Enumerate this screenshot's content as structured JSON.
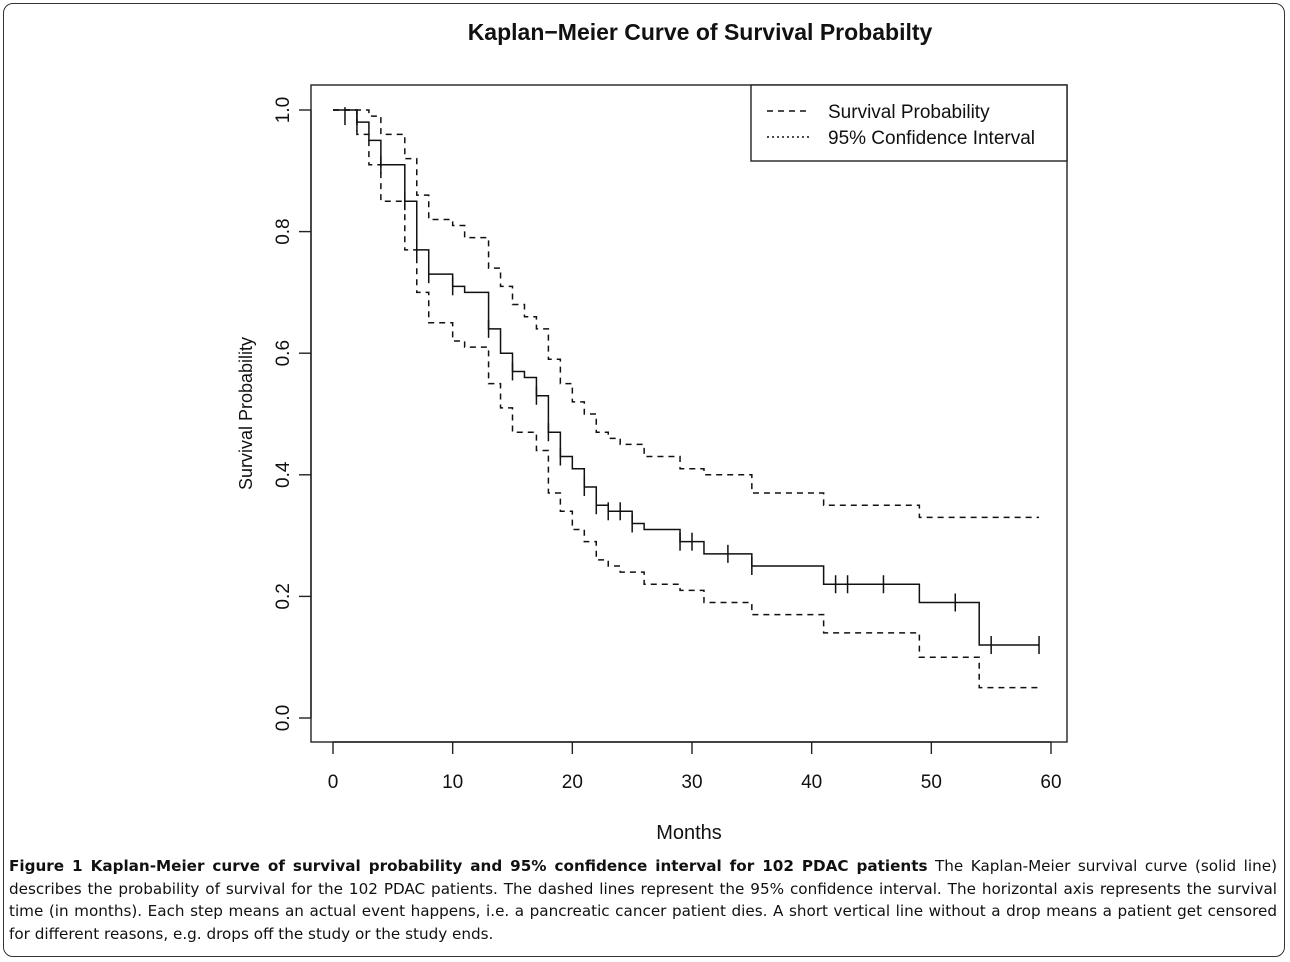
{
  "chart_data": {
    "type": "line",
    "title": "Kaplan−Meier Curve of Survival Probabilty",
    "xlabel": "Months",
    "ylabel": "Survival Probability",
    "xlim": [
      0,
      60
    ],
    "ylim": [
      0,
      1.0
    ],
    "x_ticks": [
      "0",
      "10",
      "20",
      "30",
      "40",
      "50",
      "60"
    ],
    "y_ticks": [
      "0.0",
      "0.2",
      "0.4",
      "0.6",
      "0.8",
      "1.0"
    ],
    "grid": false,
    "legend_position": "top-right",
    "legend": [
      "Survival Probability",
      "95% Confidence Interval"
    ],
    "series": [
      {
        "style": "solid",
        "x": [
          0,
          2,
          3,
          4,
          6,
          7,
          8,
          10,
          11,
          13,
          14,
          15,
          16,
          17,
          18,
          19,
          20,
          21,
          22,
          23,
          24,
          25,
          26,
          29,
          31,
          35,
          41,
          49,
          54,
          59
        ],
        "y": [
          1.0,
          0.98,
          0.95,
          0.91,
          0.85,
          0.77,
          0.73,
          0.71,
          0.7,
          0.64,
          0.6,
          0.57,
          0.56,
          0.53,
          0.47,
          0.43,
          0.41,
          0.38,
          0.35,
          0.34,
          0.34,
          0.32,
          0.31,
          0.29,
          0.27,
          0.25,
          0.22,
          0.19,
          0.12,
          0.12
        ]
      },
      {
        "style": "dashed-upper",
        "x": [
          0,
          3,
          4,
          6,
          7,
          8,
          10,
          11,
          13,
          14,
          15,
          16,
          17,
          18,
          19,
          20,
          21,
          22,
          23,
          24,
          26,
          29,
          31,
          35,
          41,
          49,
          54,
          59
        ],
        "y": [
          1.0,
          0.99,
          0.96,
          0.92,
          0.86,
          0.82,
          0.81,
          0.79,
          0.74,
          0.71,
          0.68,
          0.66,
          0.64,
          0.59,
          0.55,
          0.52,
          0.5,
          0.47,
          0.46,
          0.45,
          0.43,
          0.41,
          0.4,
          0.37,
          0.35,
          0.33,
          0.33,
          0.33
        ]
      },
      {
        "style": "dashed-lower",
        "x": [
          0,
          2,
          3,
          4,
          6,
          7,
          8,
          10,
          11,
          13,
          14,
          15,
          17,
          18,
          19,
          20,
          21,
          22,
          23,
          24,
          26,
          29,
          31,
          35,
          41,
          49,
          54,
          59
        ],
        "y": [
          1.0,
          0.96,
          0.91,
          0.85,
          0.77,
          0.7,
          0.65,
          0.62,
          0.61,
          0.55,
          0.51,
          0.47,
          0.44,
          0.37,
          0.34,
          0.31,
          0.29,
          0.26,
          0.25,
          0.24,
          0.22,
          0.21,
          0.19,
          0.17,
          0.14,
          0.1,
          0.05,
          0.05
        ]
      }
    ],
    "censor_marks": [
      {
        "x": 1,
        "y": 0.99
      },
      {
        "x": 2,
        "y": 0.98
      },
      {
        "x": 4,
        "y": 0.91
      },
      {
        "x": 6,
        "y": 0.85
      },
      {
        "x": 7,
        "y": 0.77
      },
      {
        "x": 8,
        "y": 0.73
      },
      {
        "x": 10,
        "y": 0.71
      },
      {
        "x": 13,
        "y": 0.64
      },
      {
        "x": 15,
        "y": 0.57
      },
      {
        "x": 17,
        "y": 0.53
      },
      {
        "x": 18,
        "y": 0.47
      },
      {
        "x": 19,
        "y": 0.43
      },
      {
        "x": 21,
        "y": 0.38
      },
      {
        "x": 22,
        "y": 0.35
      },
      {
        "x": 23,
        "y": 0.34
      },
      {
        "x": 24,
        "y": 0.34
      },
      {
        "x": 25,
        "y": 0.32
      },
      {
        "x": 29,
        "y": 0.29
      },
      {
        "x": 30,
        "y": 0.29
      },
      {
        "x": 33,
        "y": 0.27
      },
      {
        "x": 35,
        "y": 0.25
      },
      {
        "x": 42,
        "y": 0.22
      },
      {
        "x": 43,
        "y": 0.22
      },
      {
        "x": 46,
        "y": 0.22
      },
      {
        "x": 52,
        "y": 0.19
      },
      {
        "x": 55,
        "y": 0.12
      },
      {
        "x": 59,
        "y": 0.12
      }
    ]
  },
  "caption": {
    "label": "Figure 1 Kaplan-Meier curve of survival probability and 95% confidence interval for 102 PDAC patients",
    "text": "The Kaplan-Meier survival curve (solid line) describes the probability of survival for the 102 PDAC patients. The dashed lines represent the 95% confidence interval. The horizontal axis represents the survival time (in months). Each step means an actual event happens, i.e. a pancreatic cancer patient dies. A short vertical line without a drop means a patient get censored for different reasons, e.g. drops off the study or the study ends."
  }
}
